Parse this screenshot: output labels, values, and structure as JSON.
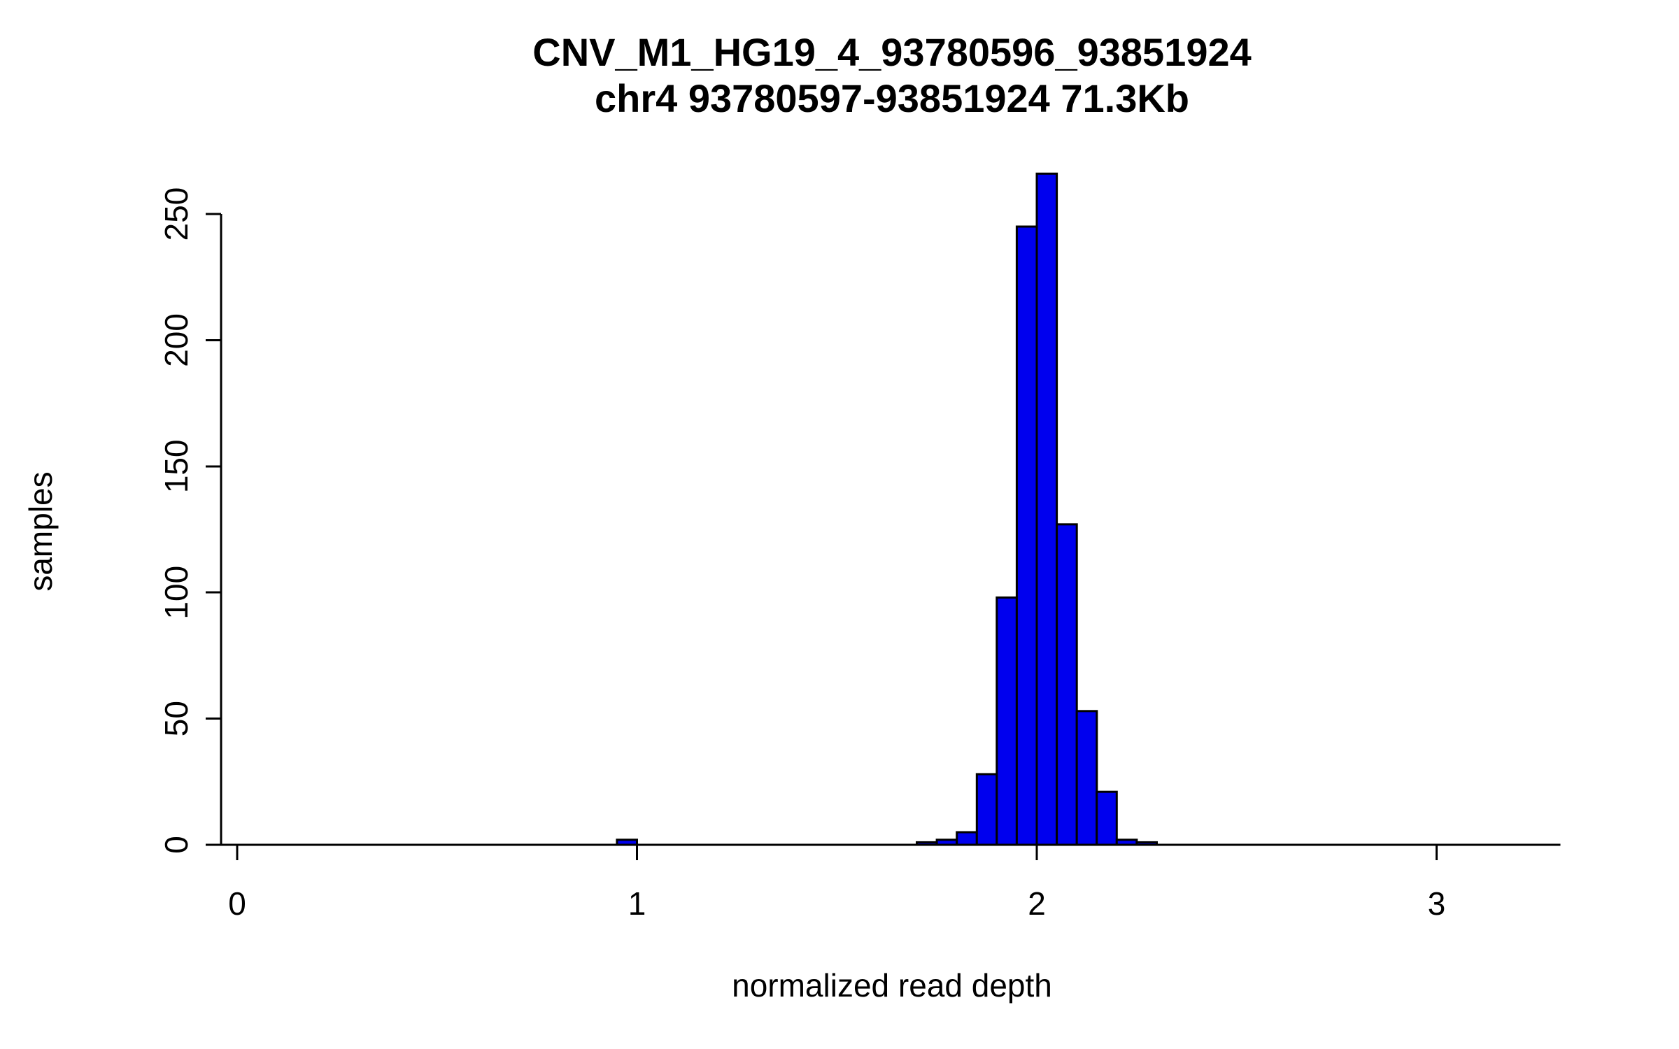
{
  "chart_data": {
    "type": "bar",
    "subtype": "histogram",
    "title": "CNV_M1_HG19_4_93780596_93851924",
    "subtitle": "chr4 93780597-93851924 71.3Kb",
    "xlabel": "normalized read depth",
    "ylabel": "samples",
    "bar_color": "#0000EE",
    "bar_border_color": "#000000",
    "bin_width": 0.05,
    "bins": [
      {
        "x": 0.95,
        "count": 2
      },
      {
        "x": 1.7,
        "count": 1
      },
      {
        "x": 1.75,
        "count": 2
      },
      {
        "x": 1.8,
        "count": 5
      },
      {
        "x": 1.85,
        "count": 28
      },
      {
        "x": 1.9,
        "count": 98
      },
      {
        "x": 1.95,
        "count": 245
      },
      {
        "x": 2.0,
        "count": 266
      },
      {
        "x": 2.05,
        "count": 127
      },
      {
        "x": 2.1,
        "count": 53
      },
      {
        "x": 2.15,
        "count": 21
      },
      {
        "x": 2.2,
        "count": 2
      },
      {
        "x": 2.25,
        "count": 1
      }
    ],
    "x_ticks": [
      0,
      1,
      2,
      3
    ],
    "y_ticks": [
      0,
      50,
      100,
      150,
      200,
      250
    ],
    "xlim": [
      -0.04,
      3.31
    ],
    "ylim": [
      0,
      266.6
    ],
    "grid": false,
    "legend": false
  }
}
